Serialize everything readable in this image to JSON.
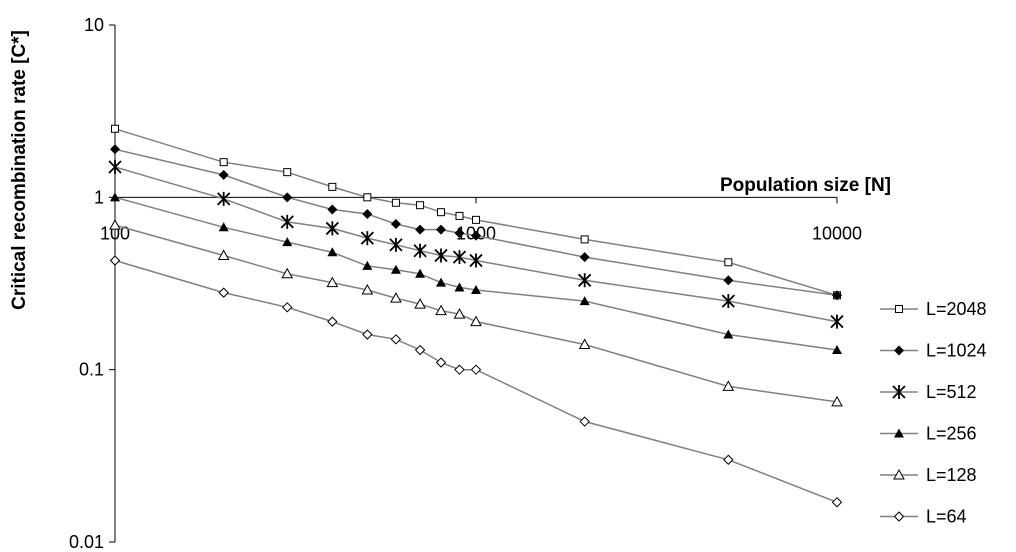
{
  "chart_data": {
    "type": "line",
    "xlabel": "Population size [N]",
    "ylabel": "Critical recombination rate [C*]",
    "x_scale": "log",
    "y_scale": "log",
    "xlim": [
      100,
      10000
    ],
    "ylim": [
      0.01,
      10
    ],
    "x_ticks": [
      "100",
      "1000",
      "10000"
    ],
    "y_ticks": [
      "10",
      "1",
      "0.1",
      "0.01"
    ],
    "legend_position": "right",
    "grid": false,
    "x": [
      100,
      200,
      300,
      400,
      500,
      600,
      700,
      800,
      900,
      1000,
      2000,
      5000,
      10000
    ],
    "series": [
      {
        "name": "L=2048",
        "marker": "open-square",
        "values": [
          2.5,
          1.6,
          1.4,
          1.15,
          1.0,
          0.93,
          0.9,
          0.82,
          0.78,
          0.74,
          0.57,
          0.42,
          0.27
        ]
      },
      {
        "name": "L=1024",
        "marker": "filled-diamond",
        "values": [
          1.9,
          1.35,
          1.0,
          0.85,
          0.8,
          0.7,
          0.65,
          0.65,
          0.62,
          0.6,
          0.45,
          0.33,
          0.27
        ]
      },
      {
        "name": "L=512",
        "marker": "asterisk",
        "values": [
          1.5,
          0.98,
          0.72,
          0.66,
          0.58,
          0.53,
          0.49,
          0.46,
          0.45,
          0.43,
          0.33,
          0.25,
          0.19
        ]
      },
      {
        "name": "L=256",
        "marker": "filled-triangle",
        "values": [
          1.0,
          0.67,
          0.55,
          0.48,
          0.4,
          0.38,
          0.36,
          0.32,
          0.3,
          0.29,
          0.25,
          0.16,
          0.13
        ]
      },
      {
        "name": "L=128",
        "marker": "open-triangle",
        "values": [
          0.69,
          0.46,
          0.36,
          0.32,
          0.29,
          0.26,
          0.24,
          0.22,
          0.21,
          0.19,
          0.14,
          0.08,
          0.065
        ]
      },
      {
        "name": "L=64",
        "marker": "open-diamond",
        "values": [
          0.43,
          0.28,
          0.23,
          0.19,
          0.16,
          0.15,
          0.13,
          0.11,
          0.1,
          0.1,
          0.05,
          0.03,
          0.017
        ]
      }
    ]
  }
}
